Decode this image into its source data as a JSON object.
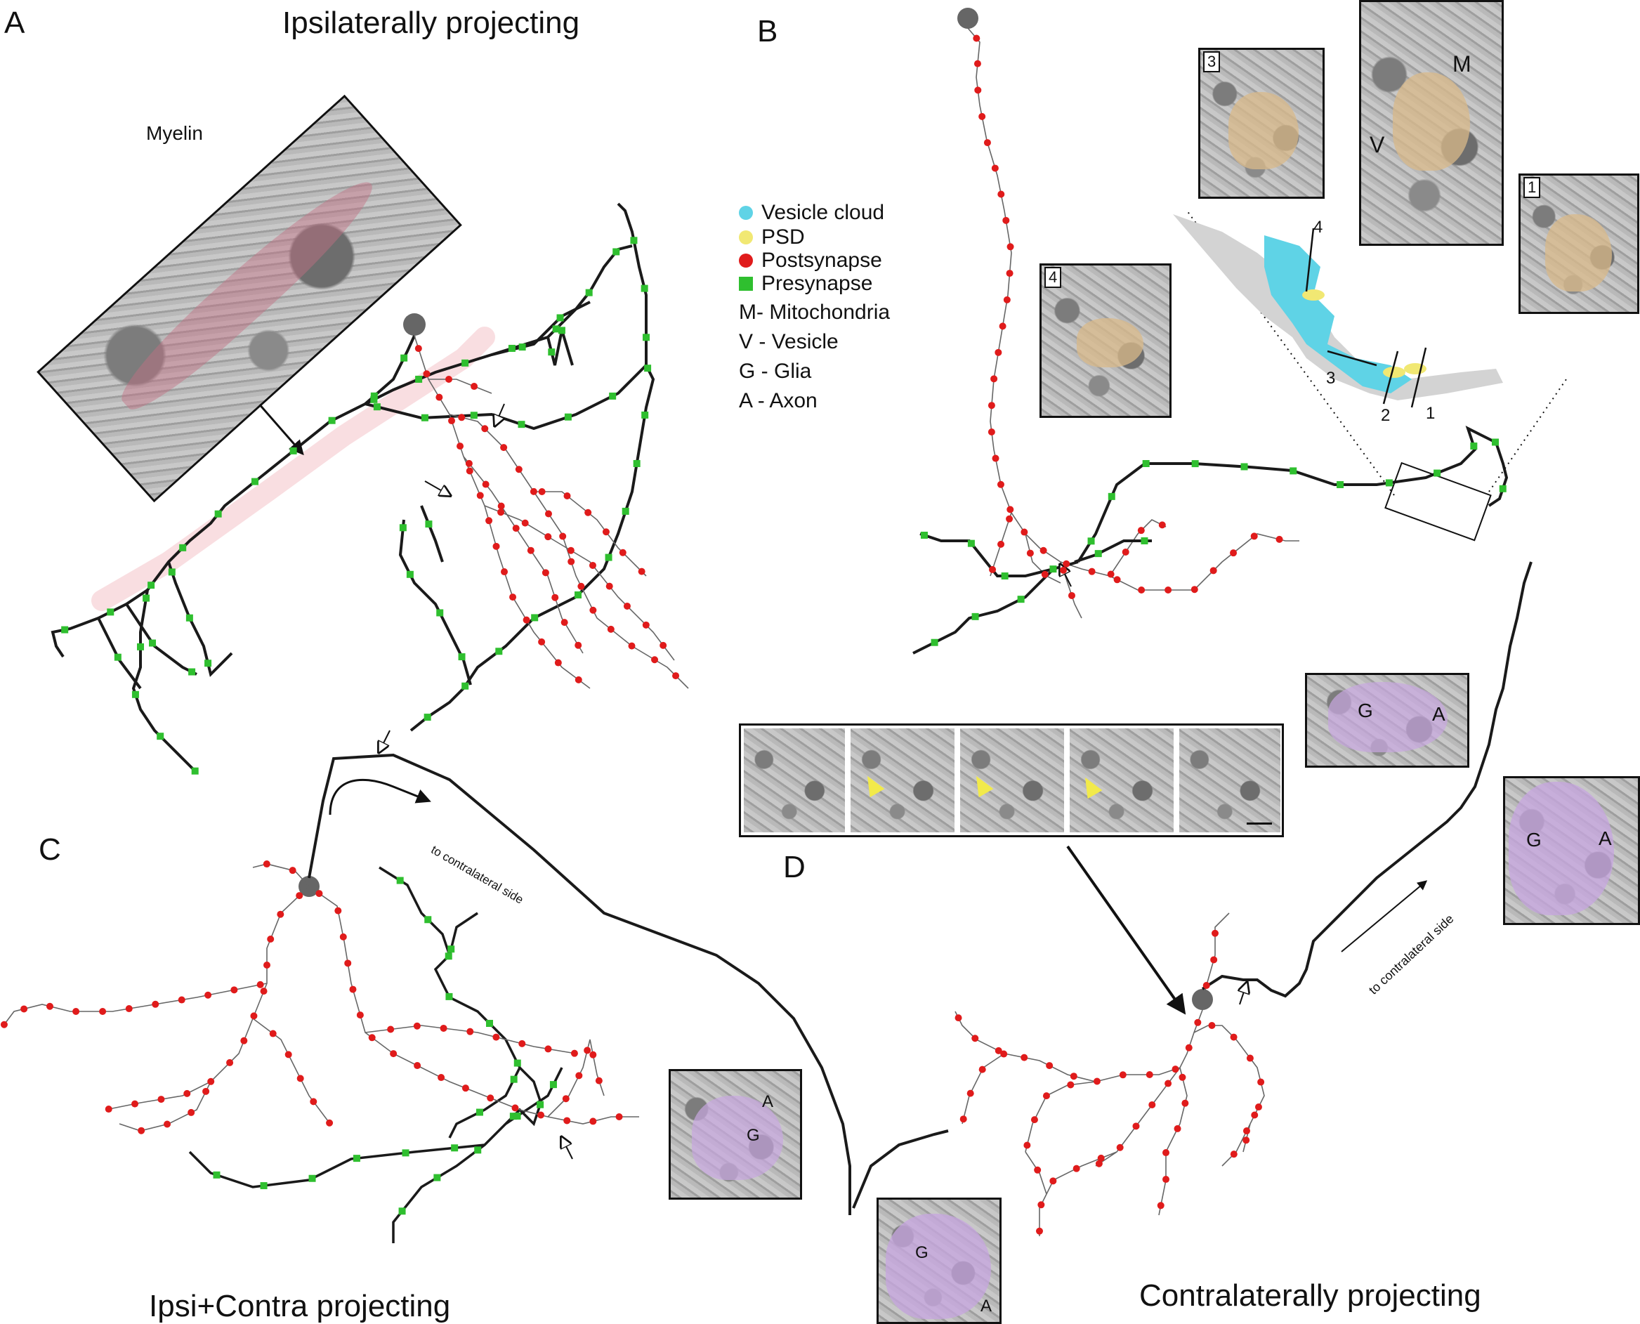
{
  "panels": {
    "a": {
      "letter": "A",
      "title": "Ipsilaterally projecting",
      "inset_label": "Myelin"
    },
    "b": {
      "letter": "B"
    },
    "c": {
      "letter": "C",
      "title": "Ipsi+Contra projecting"
    },
    "d": {
      "letter": "D",
      "title": "Contralaterally projecting"
    }
  },
  "legend": [
    {
      "label": "Vesicle cloud",
      "color": "#5fd3e6",
      "marker": "circle"
    },
    {
      "label": "PSD",
      "color": "#f1e873",
      "marker": "circle"
    },
    {
      "label": "Postsynapse",
      "color": "#e01b1b",
      "marker": "circle"
    },
    {
      "label": "Presynapse",
      "color": "#2fbf2f",
      "marker": "square"
    },
    {
      "label": "M- Mitochondria",
      "color": "",
      "marker": "none"
    },
    {
      "label": "V - Vesicle",
      "color": "",
      "marker": "none"
    },
    {
      "label": "G - Glia",
      "color": "",
      "marker": "none"
    },
    {
      "label": "A - Axon",
      "color": "",
      "marker": "none"
    }
  ],
  "b_insets": {
    "n3": "3",
    "n4": "4",
    "n1": "1",
    "label_M": "M",
    "label_V": "V",
    "section_marks": [
      "4",
      "3",
      "2",
      "1"
    ]
  },
  "glia_insets": {
    "g": "G",
    "a": "A"
  },
  "side_labels": {
    "c_contra": "to contralateral side",
    "d_contra": "to contralateral side"
  },
  "colors": {
    "axon": "#1a1a1a",
    "dendrite": "#555555",
    "postsynapse": "#e01b1b",
    "presynapse": "#2fbf2f",
    "soma": "#666666",
    "vesicle": "#5fd3e6",
    "psd": "#f1e873",
    "glia_fill": "#c7a6e0",
    "postsyn_fill": "#d9b98a",
    "myelin_tint": "#f4c9cf",
    "arrowhead_yellow": "#f2ea4a"
  }
}
